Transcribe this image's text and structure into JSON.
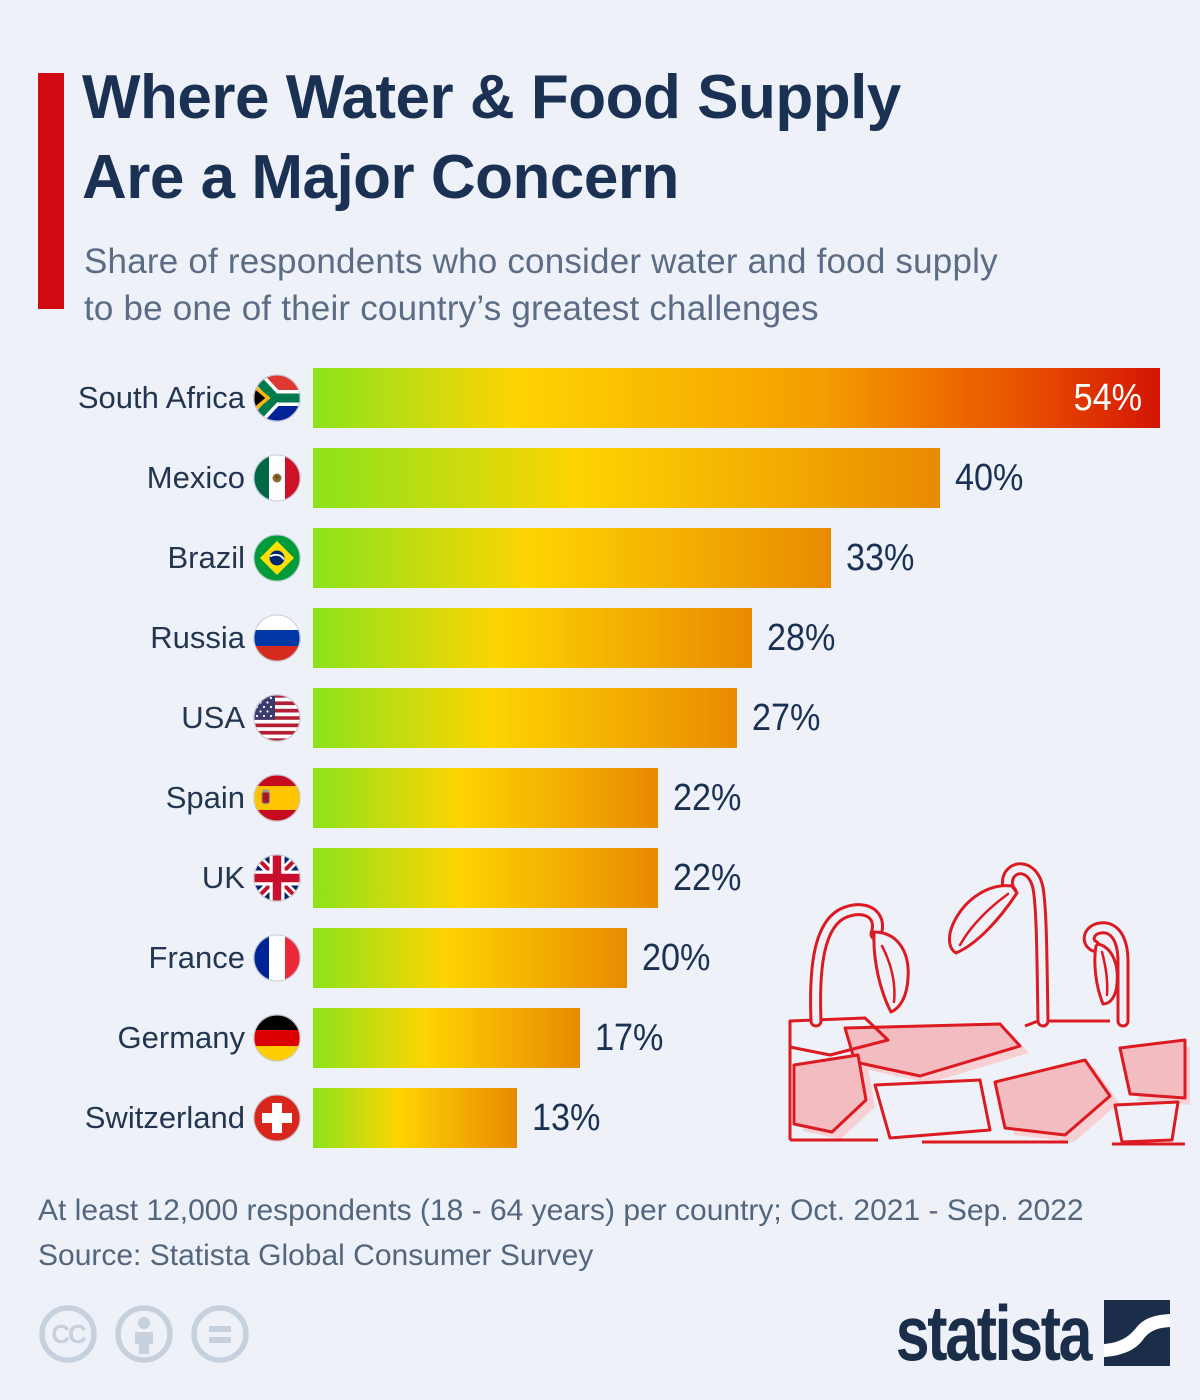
{
  "page": {
    "background_color": "#eef2f8",
    "accent_color": "#d10a11"
  },
  "header": {
    "title_lines": [
      "Where Water & Food Supply",
      "Are a Major Concern"
    ],
    "subtitle_lines": [
      "Share of respondents who consider water and food supply",
      "to be one of their country’s greatest challenges"
    ]
  },
  "chart_data": {
    "type": "bar",
    "orientation": "horizontal",
    "title": "Where Water & Food Supply Are a Major Concern",
    "unit": "%",
    "xlim": [
      0,
      54
    ],
    "grid": false,
    "legend": "none",
    "categories": [
      "South Africa",
      "Mexico",
      "Brazil",
      "Russia",
      "USA",
      "Spain",
      "UK",
      "France",
      "Germany",
      "Switzerland"
    ],
    "values": [
      54,
      40,
      33,
      28,
      27,
      22,
      22,
      20,
      17,
      13
    ],
    "flags": [
      "south-africa-flag-icon",
      "mexico-flag-icon",
      "brazil-flag-icon",
      "russia-flag-icon",
      "usa-flag-icon",
      "spain-flag-icon",
      "uk-flag-icon",
      "france-flag-icon",
      "germany-flag-icon",
      "switzerland-flag-icon"
    ],
    "value_label_inside": [
      true,
      false,
      false,
      false,
      false,
      false,
      false,
      false,
      false,
      false
    ],
    "bar_gradient": [
      "#8ce31c",
      "#fed402",
      "#e98a01"
    ],
    "top_bar_gradient": [
      "#8ce31c",
      "#fed402",
      "#f59d00",
      "#e85000",
      "#d41504"
    ]
  },
  "illustration": {
    "name": "wilted-plants-cracked-soil",
    "line_color": "#dc1a21",
    "fill_color": "#f2bcc0"
  },
  "footer": {
    "note_lines": [
      "At least 12,000 respondents (18 - 64 years) per country; Oct. 2021 - Sep. 2022",
      "Source: Statista Global Consumer Survey"
    ],
    "license_icons": [
      "cc-icon",
      "attribution-icon",
      "no-derivatives-icon"
    ],
    "brand_wordmark": "statista"
  }
}
